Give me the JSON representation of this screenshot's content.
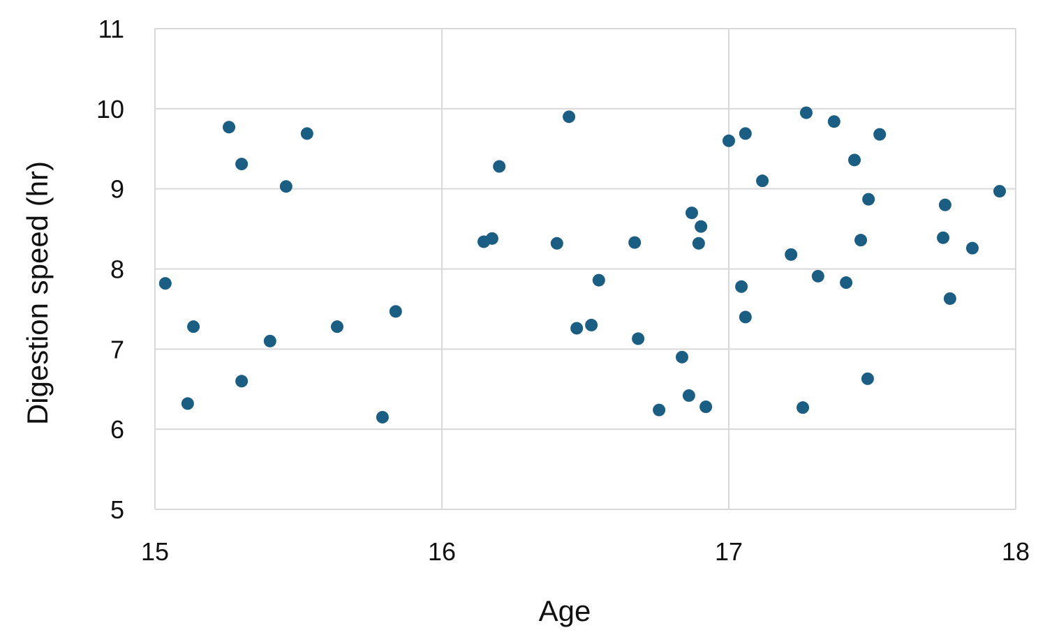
{
  "chart_data": {
    "type": "scatter",
    "xlabel": "Age",
    "ylabel": "Digestion speed (hr)",
    "color": "#1b5e84",
    "grid": true,
    "xlim": [
      15,
      18
    ],
    "xticks": [
      15,
      16,
      17,
      18
    ],
    "ylim": [
      5,
      11
    ],
    "yticks": [
      5,
      6,
      7,
      8,
      9,
      10,
      11
    ],
    "x": [
      15.036,
      15.114,
      15.134,
      15.258,
      15.302,
      15.302,
      15.401,
      15.457,
      15.53,
      15.635,
      15.793,
      15.839,
      16.146,
      16.175,
      16.2,
      16.401,
      16.443,
      16.47,
      16.521,
      16.547,
      16.672,
      16.684,
      16.757,
      16.837,
      16.861,
      16.871,
      16.903,
      16.895,
      16.92,
      17.0,
      17.044,
      17.058,
      17.058,
      17.117,
      17.217,
      17.258,
      17.27,
      17.311,
      17.367,
      17.409,
      17.438,
      17.46,
      17.484,
      17.487,
      17.526,
      17.747,
      17.754,
      17.771,
      17.849,
      17.944
    ],
    "values": [
      7.82,
      6.32,
      7.28,
      9.77,
      9.31,
      6.6,
      7.1,
      9.03,
      9.69,
      7.28,
      6.15,
      7.47,
      8.34,
      8.38,
      9.28,
      8.32,
      9.9,
      7.26,
      7.3,
      7.86,
      8.33,
      7.13,
      6.24,
      6.9,
      6.42,
      8.7,
      8.53,
      8.32,
      6.28,
      9.6,
      7.78,
      9.69,
      7.4,
      9.1,
      8.18,
      6.27,
      9.95,
      7.91,
      9.84,
      7.83,
      9.36,
      8.36,
      6.63,
      8.87,
      9.68,
      8.39,
      8.8,
      7.63,
      8.26,
      8.97
    ]
  }
}
